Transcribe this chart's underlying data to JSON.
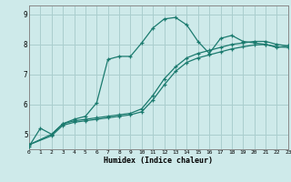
{
  "xlabel": "Humidex (Indice chaleur)",
  "bg_color": "#ceeaea",
  "line_color": "#1a7a6e",
  "grid_color": "#aacece",
  "xlim": [
    0,
    23
  ],
  "ylim": [
    4.5,
    9.3
  ],
  "yticks": [
    5,
    6,
    7,
    8,
    9
  ],
  "xticks": [
    0,
    1,
    2,
    3,
    4,
    5,
    6,
    7,
    8,
    9,
    10,
    11,
    12,
    13,
    14,
    15,
    16,
    17,
    18,
    19,
    20,
    21,
    22,
    23
  ],
  "line1_x": [
    0,
    1,
    2,
    3,
    4,
    5,
    6,
    7,
    8,
    9,
    10,
    11,
    12,
    13,
    14,
    15,
    16,
    17,
    18,
    19,
    20,
    21,
    22,
    23
  ],
  "line1_y": [
    4.6,
    5.2,
    5.0,
    5.35,
    5.5,
    5.6,
    6.05,
    7.5,
    7.6,
    7.6,
    8.05,
    8.55,
    8.85,
    8.9,
    8.65,
    8.1,
    7.7,
    8.2,
    8.3,
    8.1,
    8.05,
    8.0,
    7.9,
    7.95
  ],
  "line2_x": [
    0,
    2,
    3,
    4,
    5,
    6,
    7,
    8,
    9,
    10,
    11,
    12,
    13,
    14,
    15,
    16,
    17,
    18,
    19,
    20,
    21,
    22,
    23
  ],
  "line2_y": [
    4.65,
    5.0,
    5.35,
    5.45,
    5.5,
    5.55,
    5.6,
    5.65,
    5.7,
    5.85,
    6.3,
    6.85,
    7.25,
    7.55,
    7.7,
    7.8,
    7.9,
    8.0,
    8.05,
    8.1,
    8.1,
    8.0,
    7.95
  ],
  "line3_x": [
    0,
    2,
    3,
    4,
    5,
    6,
    7,
    8,
    9,
    10,
    11,
    12,
    13,
    14,
    15,
    16,
    17,
    18,
    19,
    20,
    21,
    22,
    23
  ],
  "line3_y": [
    4.65,
    4.95,
    5.3,
    5.4,
    5.45,
    5.5,
    5.55,
    5.6,
    5.65,
    5.75,
    6.15,
    6.65,
    7.1,
    7.4,
    7.55,
    7.65,
    7.75,
    7.85,
    7.92,
    7.98,
    8.0,
    7.92,
    7.9
  ]
}
